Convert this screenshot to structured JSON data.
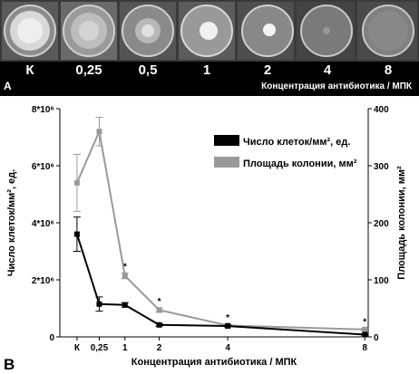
{
  "panel_a": {
    "letter": "A",
    "caption": "Концентрация антибиотика / МПК",
    "dish_labels": [
      "К",
      "0,25",
      "0,5",
      "1",
      "2",
      "4",
      "8"
    ]
  },
  "panel_b": {
    "letter": "B"
  },
  "chart_data": {
    "type": "line",
    "xlabel": "Концентрация антибиотика / МПК",
    "ylabel_left": "Число клеток/мм², ед.",
    "ylabel_right": "Площадь колонии, мм²",
    "x_tick_labels": [
      "К",
      "0,25",
      "1",
      "2",
      "4",
      "8"
    ],
    "x": [
      -0.4,
      0.25,
      1,
      2,
      4,
      8
    ],
    "y_left_ticks": [
      "0",
      "2*10⁶",
      "4*10⁶",
      "6*10⁶",
      "8*10⁶"
    ],
    "y_left_lim": [
      0,
      8000000
    ],
    "y_right_ticks": [
      "0",
      "100",
      "200",
      "300",
      "400"
    ],
    "y_right_lim": [
      0,
      400
    ],
    "series": [
      {
        "name": "Число клеток/мм², ед.",
        "axis": "left",
        "color": "#000000",
        "values": [
          3600000,
          1150000,
          1120000,
          420000,
          380000,
          80000
        ],
        "errors": [
          600000,
          250000,
          80000,
          40000,
          30000,
          20000
        ]
      },
      {
        "name": "Площадь колонии, мм²",
        "axis": "right",
        "color": "#999999",
        "values": [
          270,
          360,
          107,
          47,
          20,
          13
        ],
        "errors": [
          50,
          25,
          5,
          4,
          2,
          2
        ]
      }
    ],
    "significance_marks": [
      "*",
      "*",
      "*",
      "*"
    ],
    "significance_x": [
      1,
      2,
      4,
      8
    ],
    "legend_position": "top-right"
  }
}
